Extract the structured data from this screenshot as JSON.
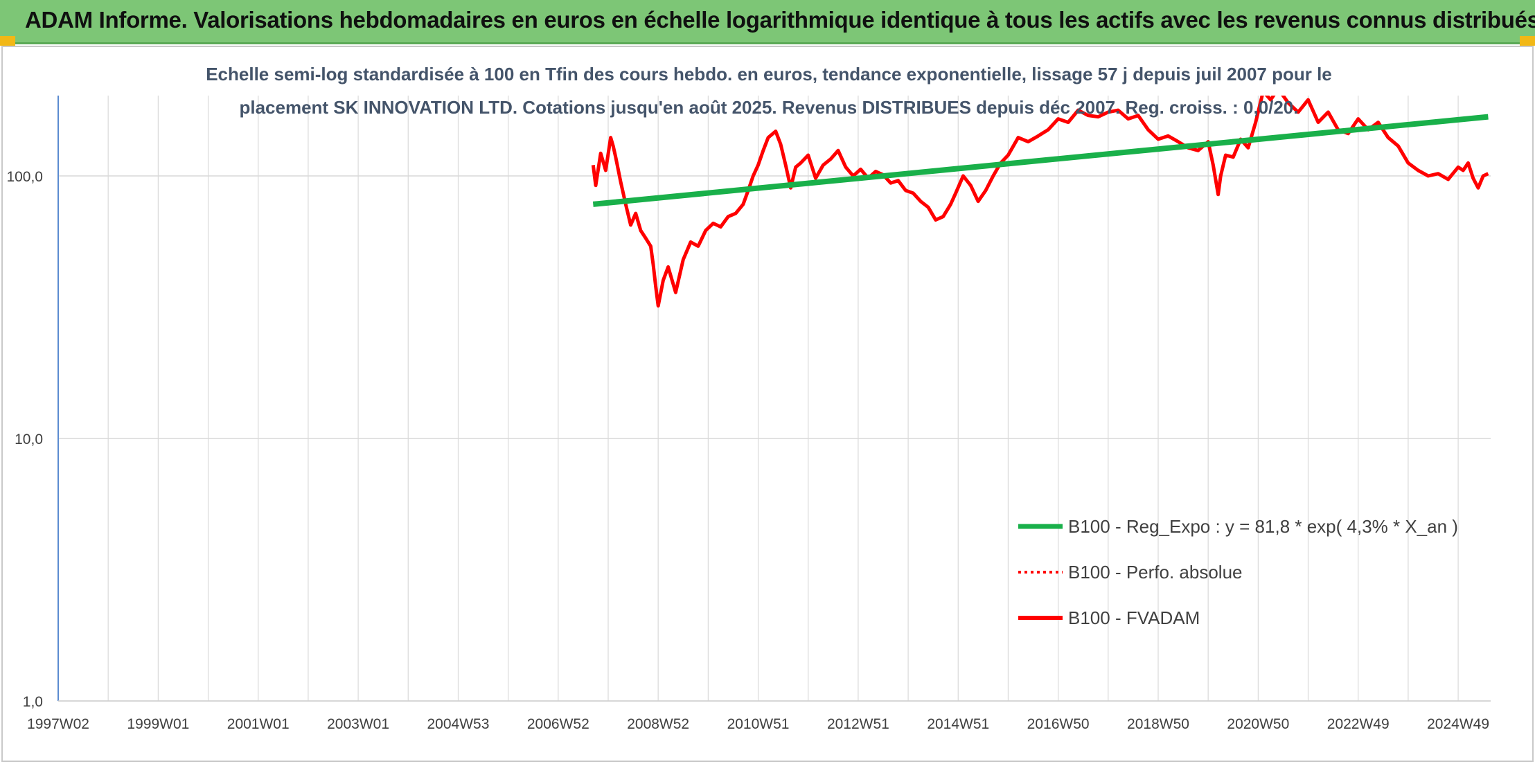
{
  "banner": {
    "title": "ADAM Informe. Valorisations hebdomadaires en euros en échelle logarithmique identique à tous les actifs avec les revenus connus distribués"
  },
  "colors": {
    "banner_bg": "#7dc676",
    "accent_corner": "#f2b816",
    "series_trend": "#19b04a",
    "series_fvadam": "#ff0000",
    "series_perf": "#ff0000",
    "axis_line": "#5b8bd0",
    "grid": "#d9d9d9"
  },
  "chart_data": {
    "type": "line",
    "title_lines": [
      "Echelle semi-log standardisée à 100 en Tfin des cours hebdo. en euros, tendance exponentielle, lissage 57 j depuis juil 2007 pour le",
      "placement SK INNOVATION LTD. Cotations jusqu'en août 2025. Revenus DISTRIBUES depuis déc 2007. Reg. croiss. : 0,0/20."
    ],
    "y_scale": "log",
    "ylim": [
      1,
      200
    ],
    "y_ticks": [
      "1,0",
      "10,0",
      "100,0"
    ],
    "xlim": [
      1997.0,
      2025.65
    ],
    "x_ticks": [
      {
        "label": "1997W02",
        "year": 1997.0
      },
      {
        "label": "1999W01",
        "year": 1999.0
      },
      {
        "label": "2001W01",
        "year": 2001.0
      },
      {
        "label": "2003W01",
        "year": 2003.0
      },
      {
        "label": "2004W53",
        "year": 2005.0
      },
      {
        "label": "2006W52",
        "year": 2007.0
      },
      {
        "label": "2008W52",
        "year": 2009.0
      },
      {
        "label": "2010W51",
        "year": 2011.0
      },
      {
        "label": "2012W51",
        "year": 2013.0
      },
      {
        "label": "2014W51",
        "year": 2015.0
      },
      {
        "label": "2016W50",
        "year": 2017.0
      },
      {
        "label": "2018W50",
        "year": 2019.0
      },
      {
        "label": "2020W50",
        "year": 2021.0
      },
      {
        "label": "2022W49",
        "year": 2023.0
      },
      {
        "label": "2024W49",
        "year": 2025.0
      }
    ],
    "grid": true,
    "legend_position": "lower-right",
    "series": [
      {
        "name": "B100 - Reg_Expo : y = 81,8 * exp( 4,3% *  X_an )",
        "style": "solid-thick",
        "x": [
          2007.7,
          2025.6
        ],
        "y": [
          78,
          168
        ]
      },
      {
        "name": "B100 - Perfo. absolue",
        "style": "dotted",
        "x": [],
        "y": []
      },
      {
        "name": "B100 - FVADAM",
        "style": "solid",
        "x": [
          2007.7,
          2007.75,
          2007.85,
          2007.95,
          2008.05,
          2008.1,
          2008.15,
          2008.25,
          2008.35,
          2008.45,
          2008.55,
          2008.65,
          2008.75,
          2008.85,
          2008.9,
          2008.95,
          2009.0,
          2009.1,
          2009.2,
          2009.35,
          2009.5,
          2009.65,
          2009.8,
          2009.95,
          2010.1,
          2010.25,
          2010.4,
          2010.55,
          2010.7,
          2010.8,
          2010.9,
          2011.0,
          2011.1,
          2011.2,
          2011.35,
          2011.45,
          2011.55,
          2011.65,
          2011.75,
          2011.85,
          2012.0,
          2012.15,
          2012.3,
          2012.45,
          2012.6,
          2012.75,
          2012.9,
          2013.05,
          2013.2,
          2013.35,
          2013.5,
          2013.65,
          2013.8,
          2013.95,
          2014.1,
          2014.25,
          2014.4,
          2014.55,
          2014.7,
          2014.85,
          2014.95,
          2015.1,
          2015.25,
          2015.4,
          2015.55,
          2015.7,
          2015.85,
          2016.0,
          2016.2,
          2016.4,
          2016.6,
          2016.8,
          2017.0,
          2017.2,
          2017.4,
          2017.6,
          2017.8,
          2018.0,
          2018.2,
          2018.4,
          2018.6,
          2018.8,
          2019.0,
          2019.2,
          2019.4,
          2019.6,
          2019.8,
          2020.0,
          2020.1,
          2020.2,
          2020.25,
          2020.35,
          2020.5,
          2020.65,
          2020.8,
          2020.95,
          2021.1,
          2021.25,
          2021.4,
          2021.6,
          2021.8,
          2022.0,
          2022.2,
          2022.4,
          2022.6,
          2022.8,
          2023.0,
          2023.2,
          2023.4,
          2023.6,
          2023.8,
          2024.0,
          2024.2,
          2024.4,
          2024.6,
          2024.8,
          2025.0,
          2025.1,
          2025.2,
          2025.3,
          2025.4,
          2025.5,
          2025.6
        ],
        "y": [
          110,
          92,
          122,
          105,
          140,
          130,
          118,
          95,
          78,
          65,
          72,
          62,
          58,
          54,
          46,
          38,
          32,
          40,
          45,
          36,
          48,
          56,
          54,
          62,
          66,
          64,
          70,
          72,
          78,
          88,
          100,
          110,
          125,
          140,
          148,
          132,
          110,
          90,
          108,
          112,
          120,
          98,
          110,
          116,
          125,
          108,
          100,
          106,
          98,
          104,
          101,
          94,
          96,
          88,
          86,
          80,
          76,
          68,
          70,
          78,
          86,
          100,
          92,
          80,
          88,
          100,
          112,
          120,
          140,
          135,
          142,
          150,
          165,
          160,
          178,
          170,
          168,
          175,
          178,
          165,
          170,
          150,
          138,
          142,
          135,
          128,
          125,
          135,
          110,
          85,
          100,
          120,
          118,
          138,
          128,
          160,
          210,
          195,
          215,
          190,
          175,
          195,
          160,
          175,
          150,
          145,
          165,
          150,
          160,
          140,
          130,
          112,
          105,
          100,
          102,
          97,
          108,
          105,
          112,
          98,
          90,
          100,
          102
        ]
      }
    ]
  }
}
